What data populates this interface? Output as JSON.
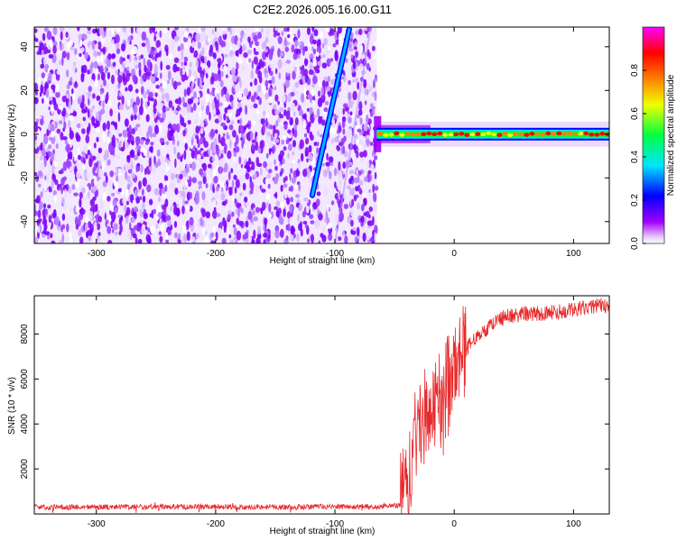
{
  "title": "C2E2.2026.005.16.00.G11",
  "colors": {
    "snr_line": "#e8292b",
    "axis": "#000000",
    "colormap": [
      "#ffffff",
      "#a000ff",
      "#0000ff",
      "#00e5ff",
      "#00ff40",
      "#f0ff00",
      "#ff8000",
      "#ff0000",
      "#ff00ff"
    ]
  },
  "chart_data": [
    {
      "type": "heatmap",
      "name": "spectrogram",
      "xlabel": "Height of straight line (km)",
      "ylabel": "Frequency (Hz)",
      "xlim": [
        -352,
        130
      ],
      "ylim": [
        -50,
        49
      ],
      "xticks": [
        -300,
        -200,
        -100,
        0,
        100
      ],
      "xticklabels": [
        "-300",
        "-200",
        "-100",
        "0",
        "100"
      ],
      "yticks": [
        -40,
        -20,
        0,
        20,
        40
      ],
      "yticklabels": [
        "-40",
        "-20",
        "0",
        "20",
        "40"
      ],
      "noise_region_x": [
        -352,
        -65
      ],
      "signal_line": {
        "x": [
          -65,
          130
        ],
        "frequency_hz": 0
      },
      "fast_trace": {
        "x": [
          -119,
          -88
        ],
        "frequency_hz": [
          -28,
          48
        ]
      },
      "colorbar": {
        "label": "Normalized spectral amplitude",
        "range": [
          0,
          1
        ],
        "ticks": [
          0,
          0.2,
          0.4,
          0.6,
          0.8
        ],
        "ticklabels": [
          "0.0",
          "0.2",
          "0.4",
          "0.6",
          "0.8"
        ]
      }
    },
    {
      "type": "line",
      "name": "snr",
      "xlabel": "Height of straight line (km)",
      "ylabel": "SNR (10 * v/v)",
      "xlim": [
        -352,
        130
      ],
      "ylim": [
        0,
        9700
      ],
      "xticks": [
        -300,
        -200,
        -100,
        0,
        100
      ],
      "xticklabels": [
        "-300",
        "-200",
        "-100",
        "0",
        "100"
      ],
      "yticks": [
        2000,
        4000,
        6000,
        8000
      ],
      "yticklabels": [
        "2000",
        "4000",
        "6000",
        "8000"
      ],
      "series": [
        {
          "name": "SNR",
          "x": [
            -352,
            -300,
            -250,
            -200,
            -150,
            -100,
            -60,
            -45,
            -40,
            -35,
            -30,
            -25,
            -20,
            -15,
            -10,
            -5,
            0,
            5,
            10,
            20,
            30,
            40,
            50,
            60,
            70,
            80,
            90,
            100,
            110,
            120,
            130
          ],
          "y": [
            300,
            300,
            320,
            310,
            300,
            320,
            330,
            400,
            1200,
            2600,
            3800,
            4200,
            4500,
            4800,
            5000,
            5600,
            6200,
            7000,
            7300,
            7900,
            8400,
            8700,
            8850,
            8900,
            8900,
            8950,
            9000,
            9100,
            9150,
            9250,
            9300
          ]
        }
      ]
    }
  ]
}
